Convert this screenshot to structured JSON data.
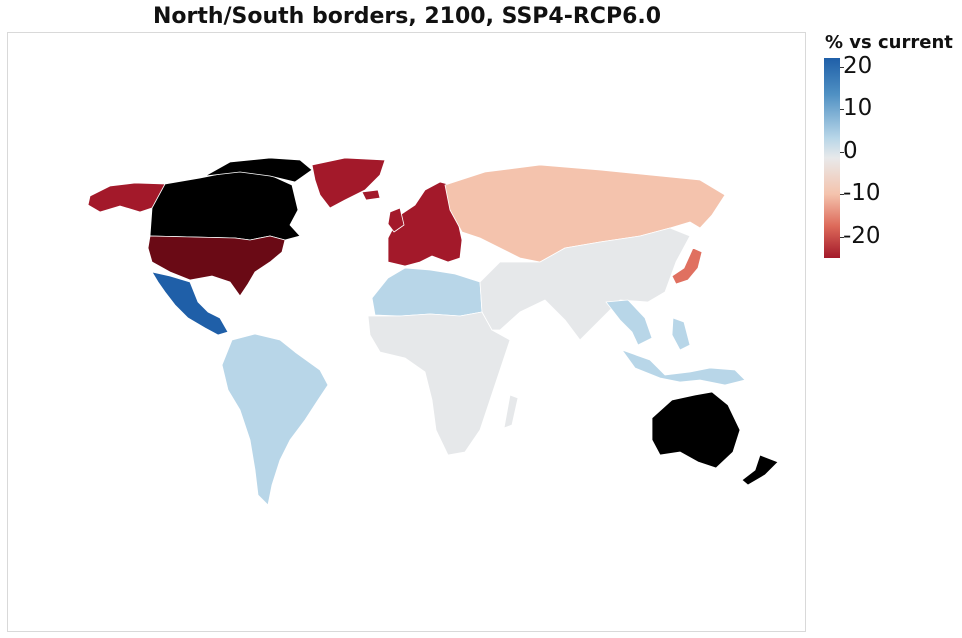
{
  "title": "North/South borders, 2100, SSP4-RCP6.0",
  "legend": {
    "title": "% vs current",
    "min": -25,
    "max": 22,
    "ticks": [
      {
        "value": 20,
        "label": "20"
      },
      {
        "value": 10,
        "label": "10"
      },
      {
        "value": 0,
        "label": "0"
      },
      {
        "value": -10,
        "label": "-10"
      },
      {
        "value": -20,
        "label": "-20"
      }
    ],
    "colors": {
      "strong_blue": "#1f5fa8",
      "light_blue": "#b8d6e8",
      "neutral": "#e6e8ea",
      "light_red": "#f4c3ad",
      "mid_red": "#e07060",
      "strong_red": "#a3192a",
      "darkest_red": "#6a0a15",
      "no_data": "#000000"
    }
  },
  "regions": [
    {
      "name": "Canada",
      "category": "no data",
      "color": "#000000"
    },
    {
      "name": "Australia",
      "category": "no data",
      "color": "#000000"
    },
    {
      "name": "New Zealand",
      "category": "no data",
      "color": "#000000"
    },
    {
      "name": "United States",
      "category": "about -25%",
      "color": "#6a0a15"
    },
    {
      "name": "Alaska",
      "category": "about -20%",
      "color": "#a3192a"
    },
    {
      "name": "Greenland",
      "category": "about -20%",
      "color": "#a3192a"
    },
    {
      "name": "Europe",
      "category": "about -20%",
      "color": "#a3192a"
    },
    {
      "name": "Japan",
      "category": "about -10%",
      "color": "#e07060"
    },
    {
      "name": "Russia",
      "category": "about -5%",
      "color": "#f4c3ad"
    },
    {
      "name": "Mexico and Central America",
      "category": "about +20%",
      "color": "#1f5fa8"
    },
    {
      "name": "South America",
      "category": "about +5%",
      "color": "#b8d6e8"
    },
    {
      "name": "North Africa",
      "category": "about +5%",
      "color": "#b8d6e8"
    },
    {
      "name": "Southeast Asia",
      "category": "about +5%",
      "color": "#b8d6e8"
    },
    {
      "name": "Africa",
      "category": "about 0%",
      "color": "#e6e8ea"
    },
    {
      "name": "Asia",
      "category": "about 0%",
      "color": "#e6e8ea"
    }
  ]
}
